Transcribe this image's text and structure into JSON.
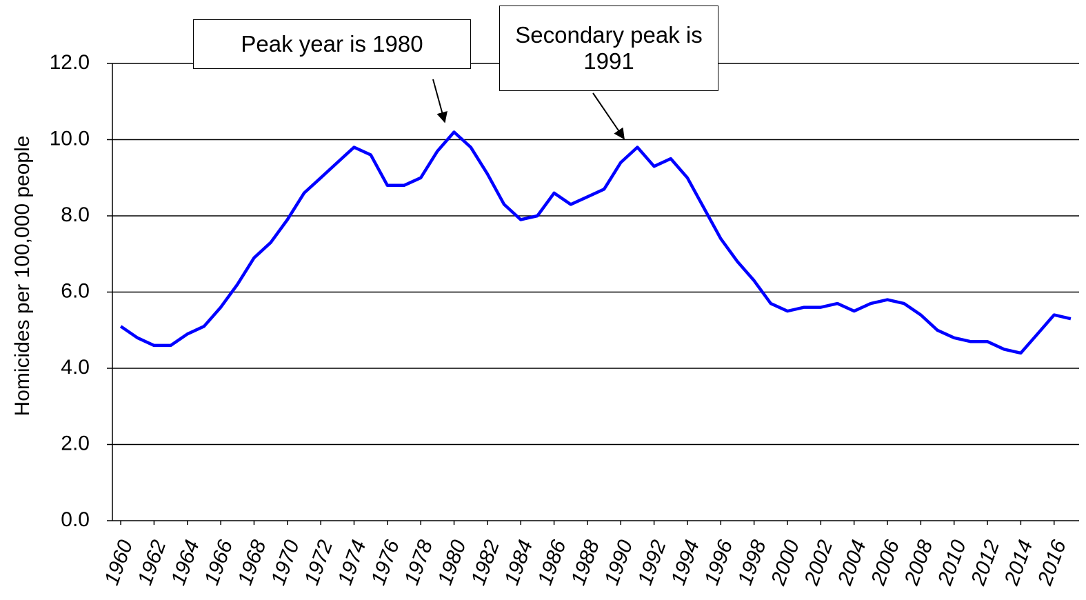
{
  "chart_data": {
    "type": "line",
    "y_label": "Homicides per 100,000 people",
    "x": [
      1960,
      1961,
      1962,
      1963,
      1964,
      1965,
      1966,
      1967,
      1968,
      1969,
      1970,
      1971,
      1972,
      1973,
      1974,
      1975,
      1976,
      1977,
      1978,
      1979,
      1980,
      1981,
      1982,
      1983,
      1984,
      1985,
      1986,
      1987,
      1988,
      1989,
      1990,
      1991,
      1992,
      1993,
      1994,
      1995,
      1996,
      1997,
      1998,
      1999,
      2000,
      2001,
      2002,
      2003,
      2004,
      2005,
      2006,
      2007,
      2008,
      2009,
      2010,
      2011,
      2012,
      2013,
      2014,
      2015,
      2016,
      2017
    ],
    "values": [
      5.1,
      4.8,
      4.6,
      4.6,
      4.9,
      5.1,
      5.6,
      6.2,
      6.9,
      7.3,
      7.9,
      8.6,
      9.0,
      9.4,
      9.8,
      9.6,
      8.8,
      8.8,
      9.0,
      9.7,
      10.2,
      9.8,
      9.1,
      8.3,
      7.9,
      8.0,
      8.6,
      8.3,
      8.5,
      8.7,
      9.4,
      9.8,
      9.3,
      9.5,
      9.0,
      8.2,
      7.4,
      6.8,
      6.3,
      5.7,
      5.5,
      5.6,
      5.6,
      5.7,
      5.5,
      5.7,
      5.8,
      5.7,
      5.4,
      5.0,
      4.8,
      4.7,
      4.7,
      4.5,
      4.4,
      4.9,
      5.4,
      5.3
    ],
    "color": "#0000ff",
    "xlim": [
      1959.5,
      2017.5
    ],
    "xticks": [
      1960,
      1962,
      1964,
      1966,
      1968,
      1970,
      1972,
      1974,
      1976,
      1978,
      1980,
      1982,
      1984,
      1986,
      1988,
      1990,
      1992,
      1994,
      1996,
      1998,
      2000,
      2002,
      2004,
      2006,
      2008,
      2010,
      2012,
      2014,
      2016
    ],
    "ylim": [
      0,
      12
    ],
    "yticks": [
      {
        "value": 0,
        "label": "0.0"
      },
      {
        "value": 2,
        "label": "2.0"
      },
      {
        "value": 4,
        "label": "4.0"
      },
      {
        "value": 6,
        "label": "6.0"
      },
      {
        "value": 8,
        "label": "8.0"
      },
      {
        "value": 10,
        "label": "10.0"
      },
      {
        "value": 12,
        "label": "12.0"
      }
    ],
    "grid": true,
    "annotations": [
      {
        "text": "Peak year is 1980"
      },
      {
        "text": "Secondary peak is 1991"
      }
    ]
  }
}
